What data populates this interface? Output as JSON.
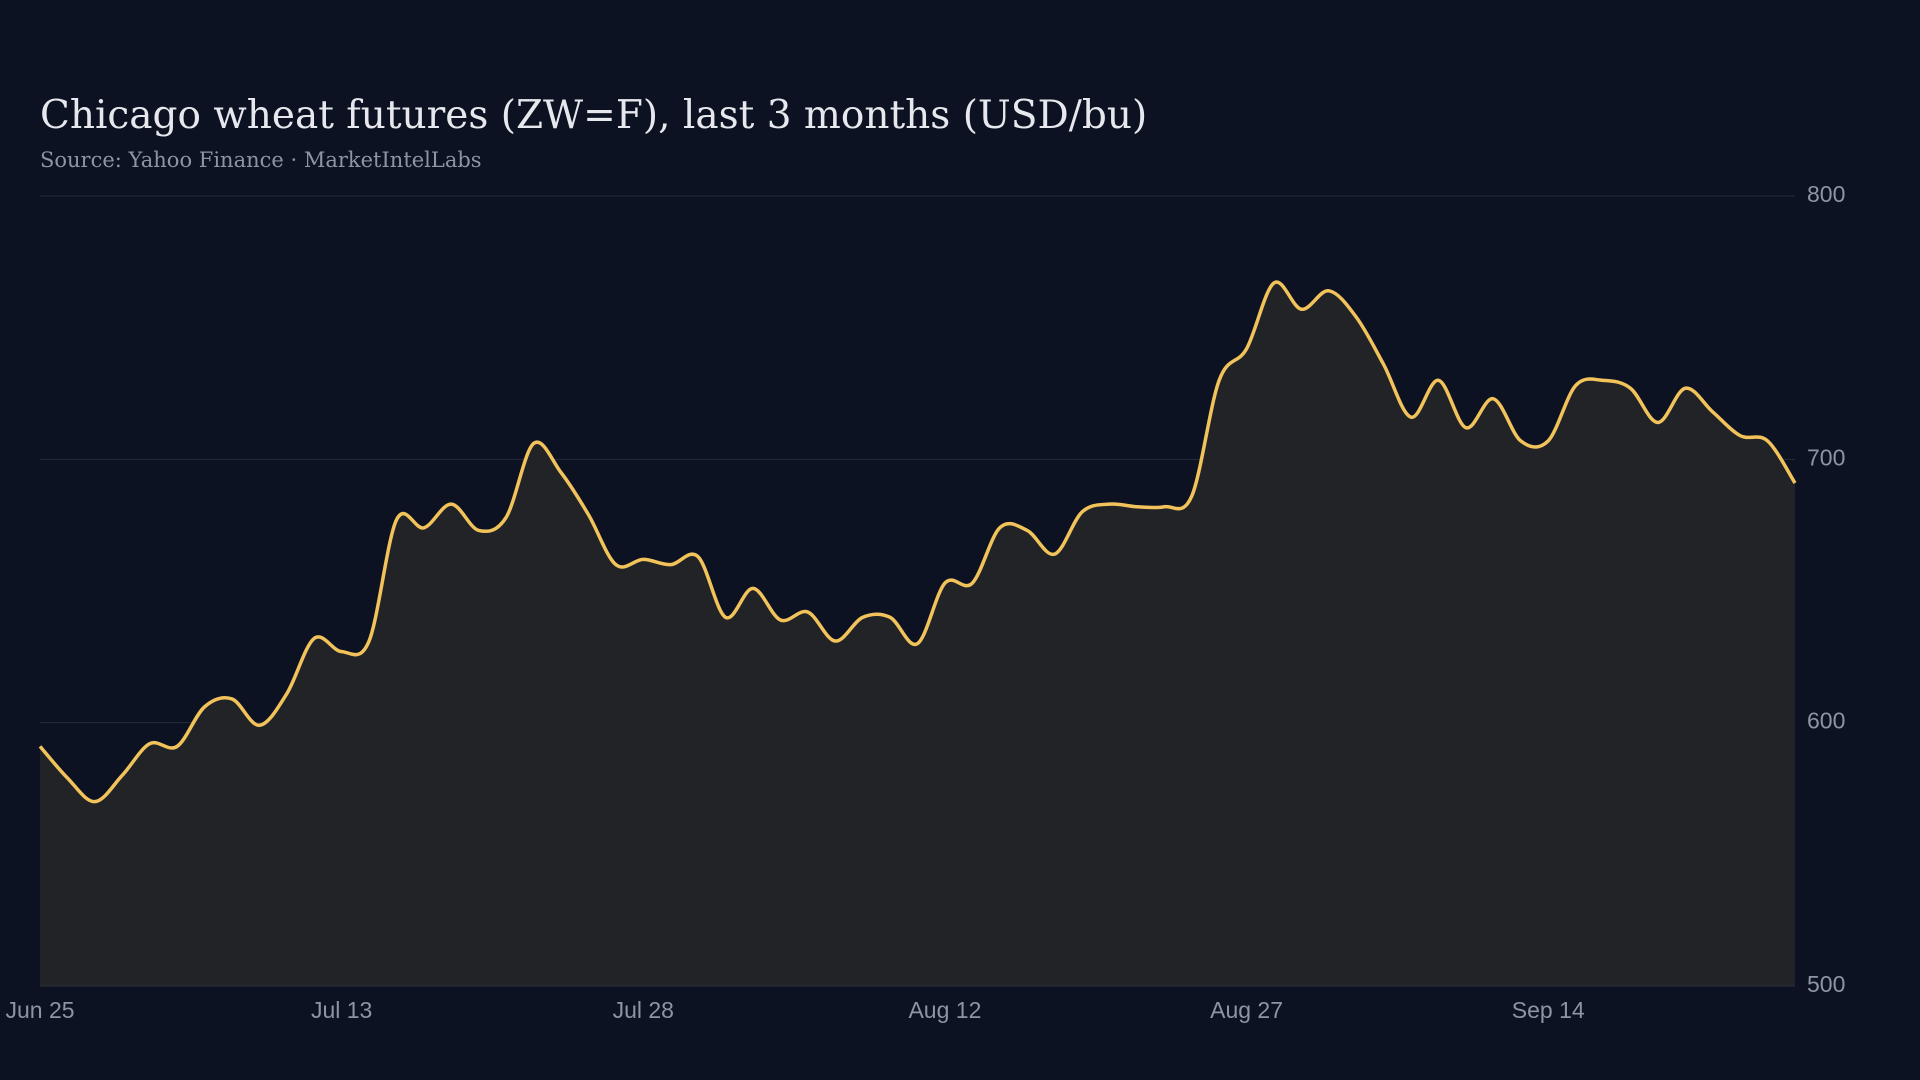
{
  "chart_data": {
    "type": "area",
    "title": "Chicago wheat futures (ZW=F), last 3 months (USD/bu)",
    "subtitle": "Source: Yahoo Finance · MarketIntelLabs",
    "categories": [
      "Jun 25",
      null,
      null,
      null,
      null,
      null,
      null,
      null,
      null,
      null,
      null,
      "Jul 13",
      null,
      null,
      null,
      null,
      null,
      null,
      null,
      null,
      null,
      null,
      "Jul 28",
      null,
      null,
      null,
      null,
      null,
      null,
      null,
      null,
      null,
      null,
      "Aug 12",
      null,
      null,
      null,
      null,
      null,
      null,
      null,
      null,
      null,
      null,
      "Aug 27",
      null,
      null,
      null,
      null,
      null,
      null,
      null,
      null,
      null,
      null,
      "Sep 14",
      null,
      null,
      null,
      null,
      null,
      null,
      null,
      null,
      null
    ],
    "values": [
      591,
      579,
      570,
      580,
      592,
      591,
      606,
      609,
      599,
      611,
      632,
      627,
      631,
      677,
      674,
      683,
      673,
      678,
      706,
      695,
      679,
      660,
      662,
      660,
      663,
      640,
      651,
      639,
      642,
      631,
      640,
      640,
      630,
      653,
      653,
      674,
      673,
      664,
      680,
      683,
      682,
      682,
      686,
      730,
      742,
      767,
      757,
      764,
      754,
      736,
      716,
      730,
      712,
      723,
      707,
      707,
      728,
      730,
      727,
      714,
      727,
      718,
      709,
      707,
      691
    ],
    "color": "#f2c35a",
    "ylim": [
      500,
      800
    ],
    "yticks": [
      500,
      600,
      700,
      800
    ],
    "grid": true
  }
}
